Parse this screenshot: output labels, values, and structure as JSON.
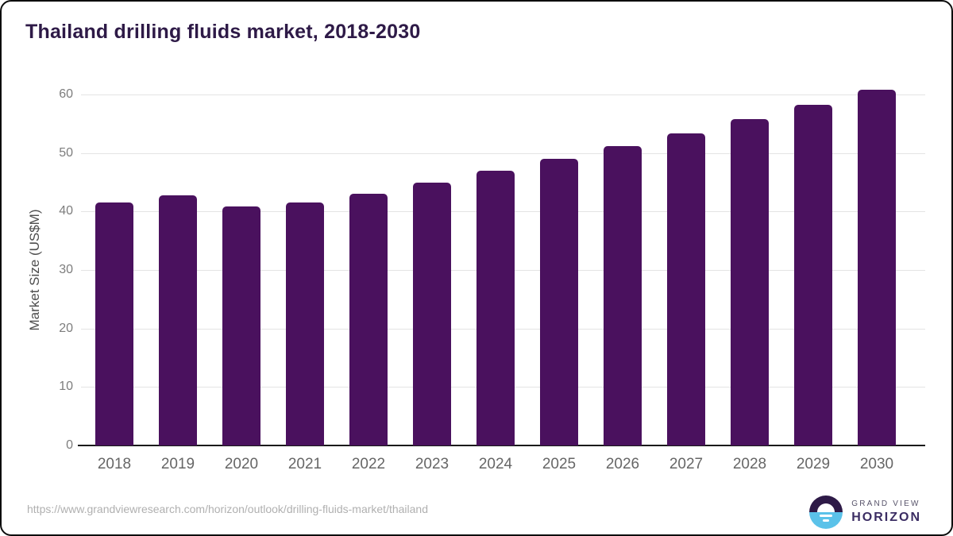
{
  "chart_data": {
    "type": "bar",
    "title": "Thailand drilling fluids market, 2018-2030",
    "ylabel": "Market Size (US$M)",
    "xlabel": "",
    "categories": [
      "2018",
      "2019",
      "2020",
      "2021",
      "2022",
      "2023",
      "2024",
      "2025",
      "2026",
      "2027",
      "2028",
      "2029",
      "2030"
    ],
    "values": [
      41.5,
      42.7,
      40.8,
      41.6,
      43.1,
      45.0,
      47.0,
      49.0,
      51.2,
      53.3,
      55.8,
      58.2,
      60.8
    ],
    "ylim": [
      0,
      60
    ],
    "yticks": [
      0,
      10,
      20,
      30,
      40,
      50,
      60
    ],
    "grid": "horizontal",
    "legend": "none",
    "bar_color": "#4a115e",
    "title_color": "#2e1a47"
  },
  "footer": {
    "source_url": "https://www.grandviewresearch.com/horizon/outlook/drilling-fluids-market/thailand",
    "logo": {
      "line1": "GRAND VIEW",
      "line2": "HORIZON",
      "mark_top_color": "#2e1a47",
      "mark_bottom_color": "#5bc2e9"
    }
  }
}
